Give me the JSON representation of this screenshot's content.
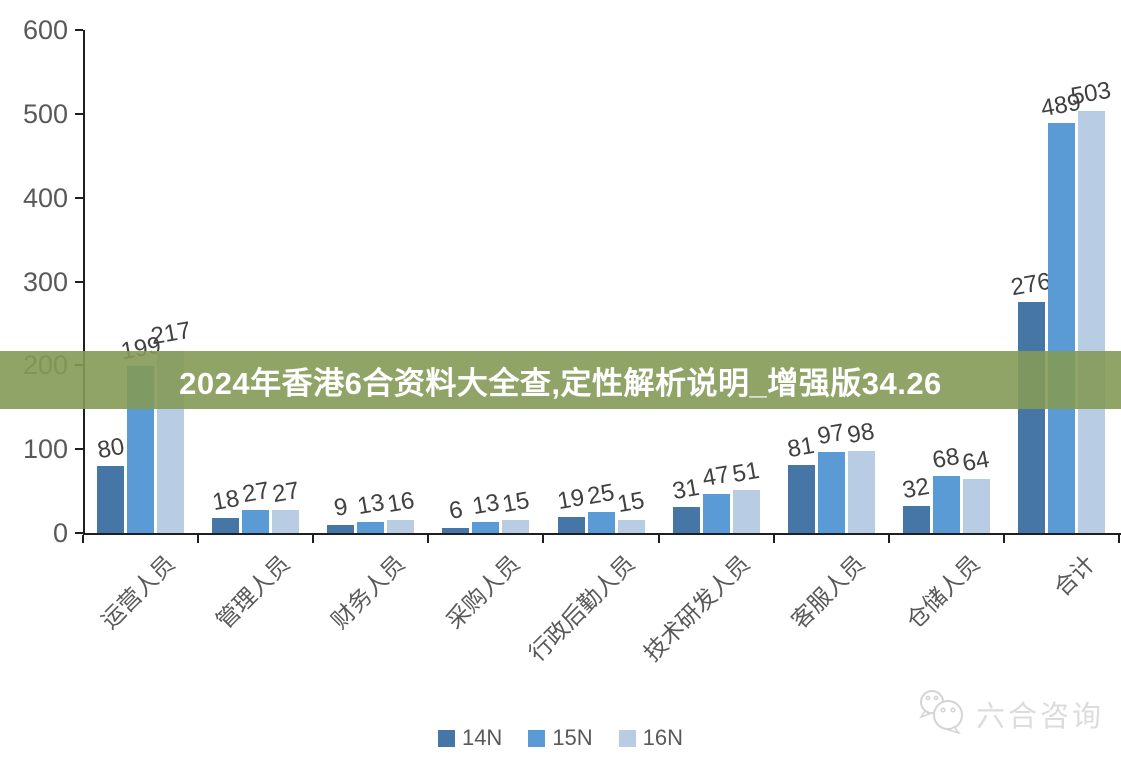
{
  "banner": {
    "text": "2024年香港6合资料大全查,定性解析说明_增强版34.26",
    "bg_color": "rgba(132,154,88,0.9)",
    "text_color": "#ffffff"
  },
  "watermark": {
    "label": "六合咨询",
    "icon": "chat-bubbles-icon",
    "color": "#dcdcdc"
  },
  "chart_data": {
    "type": "bar",
    "title": "",
    "xlabel": "",
    "ylabel": "",
    "categories": [
      "运营人员",
      "管理人员",
      "财务人员",
      "采购人员",
      "行政后勤人员",
      "技术研发人员",
      "客服人员",
      "仓储人员",
      "合计"
    ],
    "series": [
      {
        "name": "14N",
        "color": "#4576a6",
        "values": [
          80,
          18,
          9,
          6,
          19,
          31,
          81,
          32,
          276
        ]
      },
      {
        "name": "15N",
        "color": "#5b9bd5",
        "values": [
          199,
          27,
          13,
          13,
          25,
          47,
          97,
          68,
          489
        ]
      },
      {
        "name": "16N",
        "color": "#b8cce4",
        "values": [
          217,
          27,
          16,
          15,
          15,
          51,
          98,
          64,
          503
        ]
      }
    ],
    "ylim": [
      0,
      600
    ],
    "yticks": [
      0,
      100,
      200,
      300,
      400,
      500,
      600
    ],
    "grid": false,
    "legend_position": "bottom",
    "value_labels": true,
    "axis_color": "#1f1f1f",
    "tick_label_color": "#595959",
    "value_label_color": "#404040"
  }
}
